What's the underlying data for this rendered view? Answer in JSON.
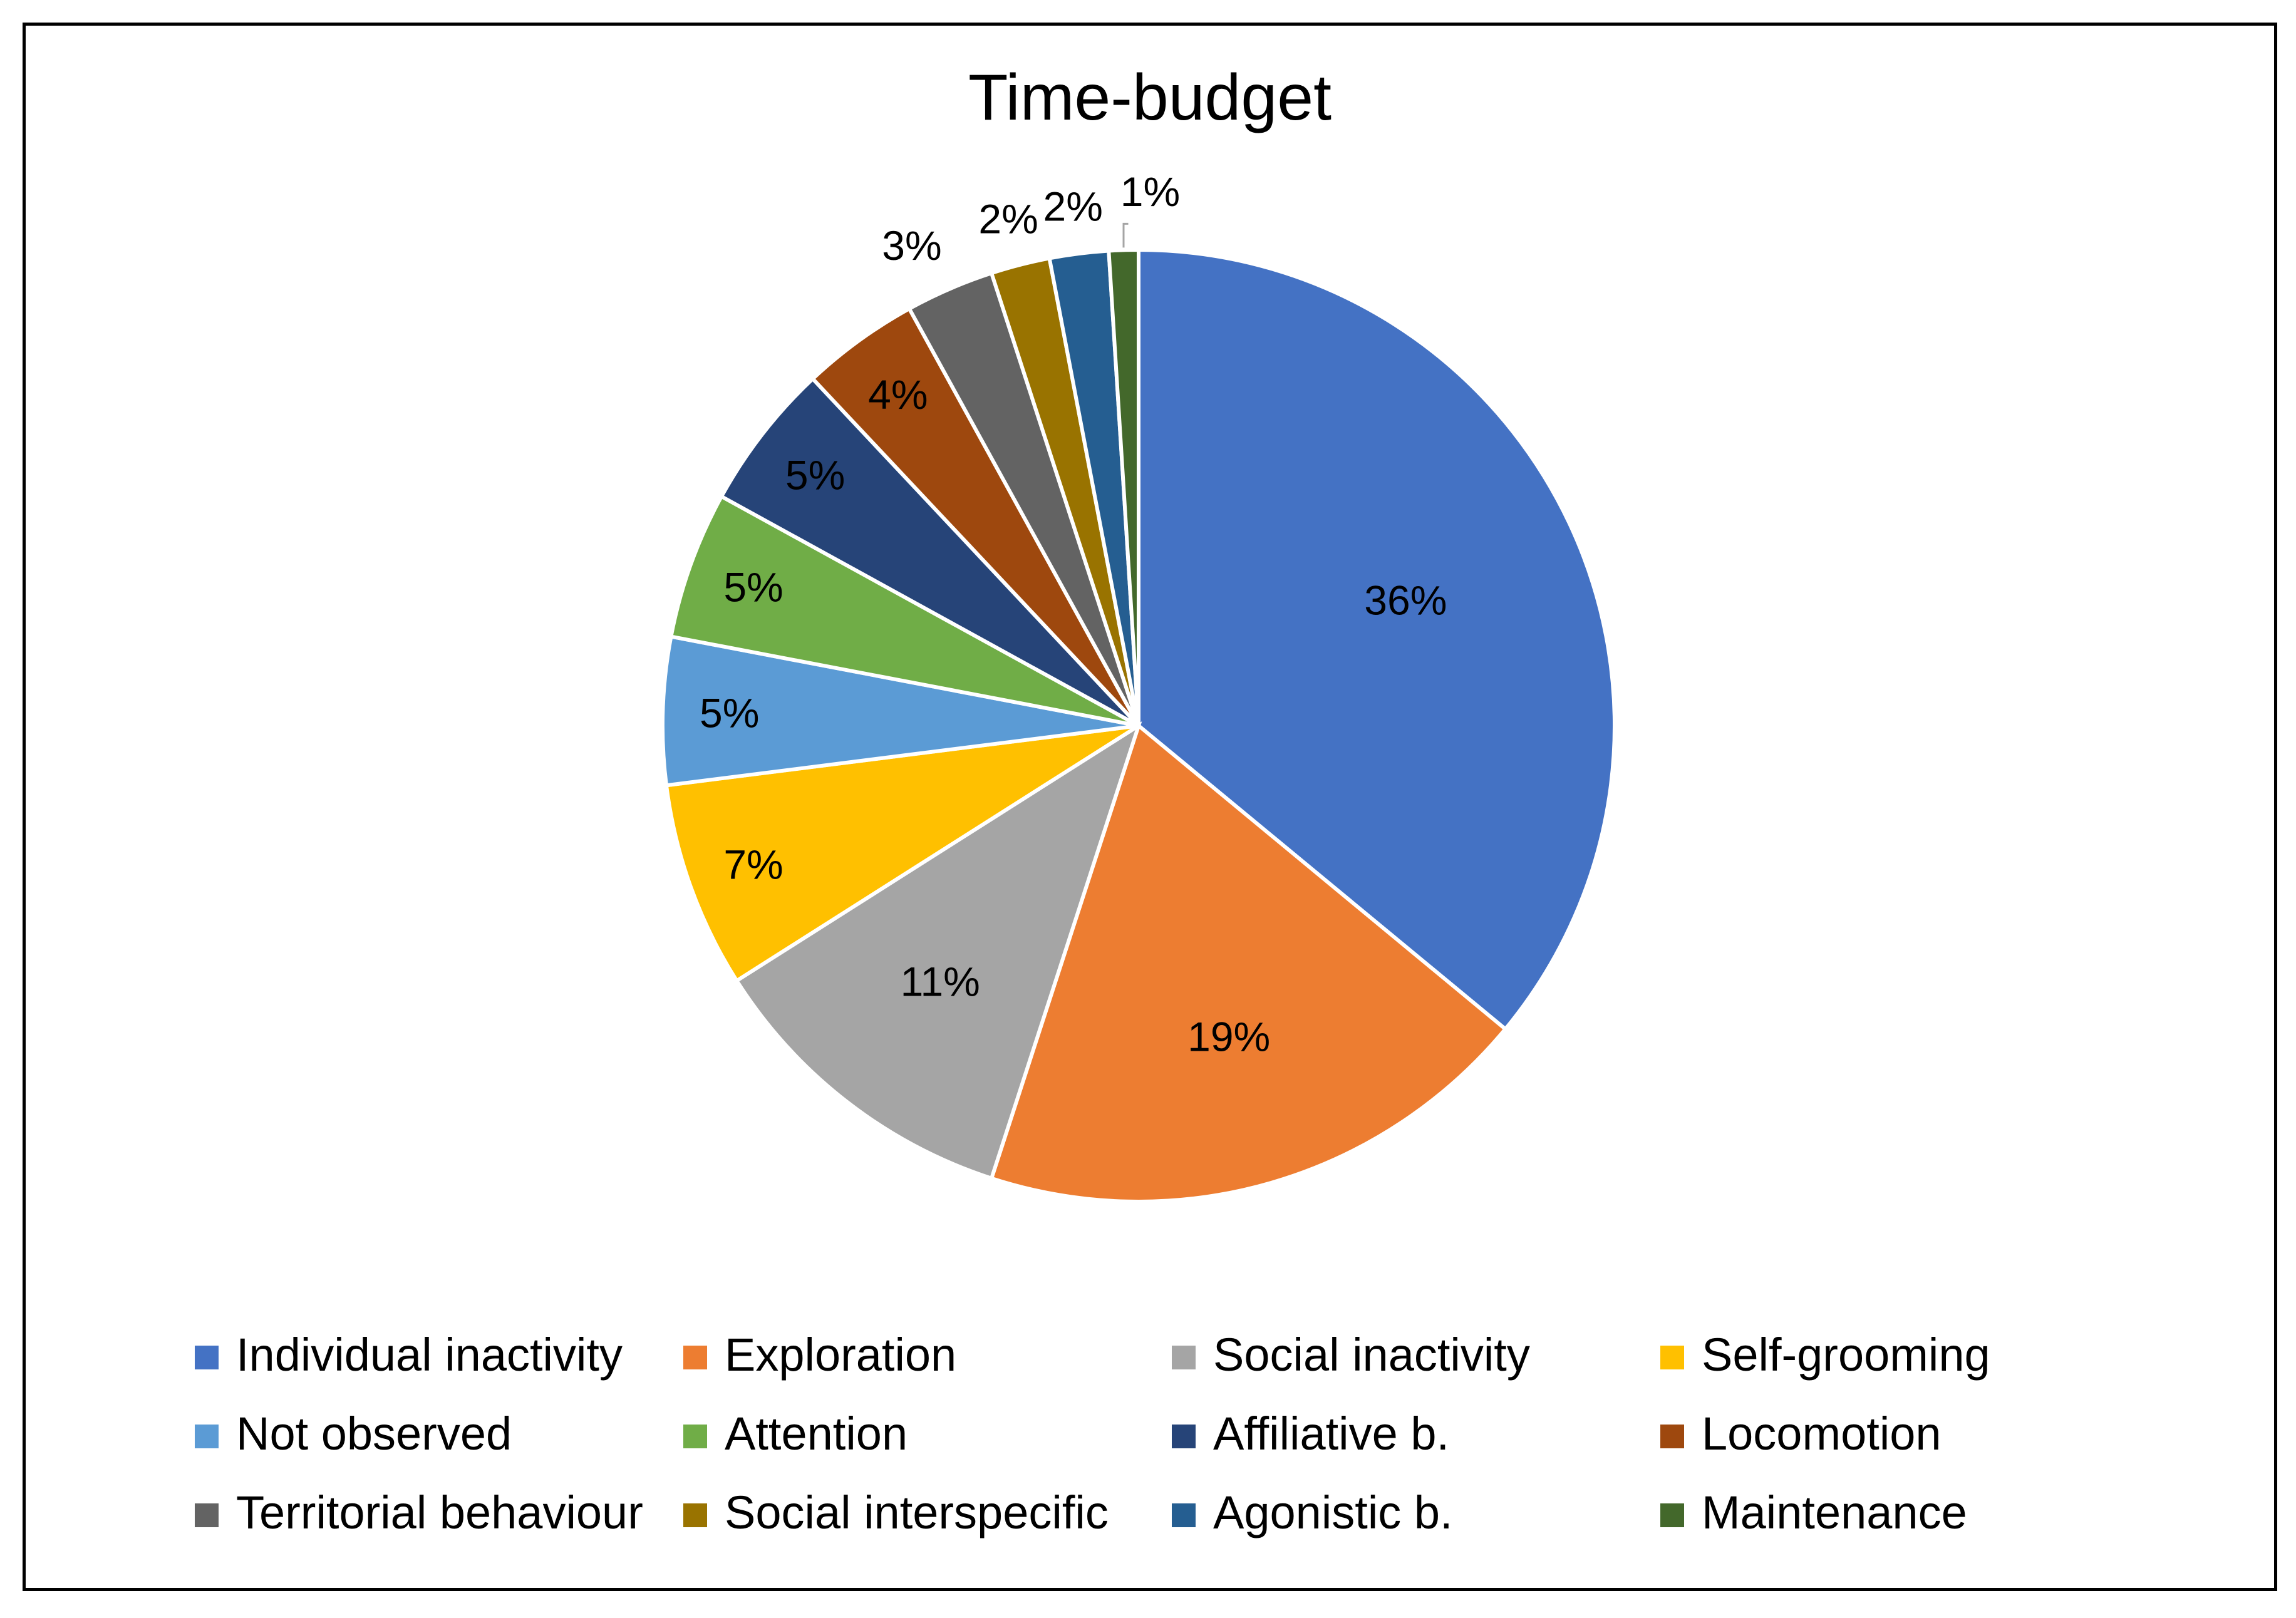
{
  "chart_data": {
    "type": "pie",
    "title": "Time-budget",
    "categories": [
      "Individual inactivity",
      "Exploration",
      "Social inactivity",
      "Self-grooming",
      "Not observed",
      "Attention",
      "Affiliative b.",
      "Locomotion",
      "Territorial behaviour",
      "Social interspecific",
      "Agonistic b.",
      "Maintenance"
    ],
    "values": [
      36,
      19,
      11,
      7,
      5,
      5,
      5,
      4,
      3,
      2,
      2,
      1
    ],
    "data_labels": [
      "36%",
      "19%",
      "11%",
      "7%",
      "5%",
      "5%",
      "5%",
      "4%",
      "3%",
      "2%",
      "2%",
      "1%"
    ],
    "colors": [
      "#4472C4",
      "#ED7D31",
      "#A5A5A5",
      "#FFC000",
      "#5B9BD5",
      "#70AD47",
      "#264478",
      "#9E480E",
      "#636363",
      "#997300",
      "#255E91",
      "#43682B"
    ],
    "legend_position": "bottom",
    "start_angle_deg": 0,
    "direction": "clockwise"
  }
}
